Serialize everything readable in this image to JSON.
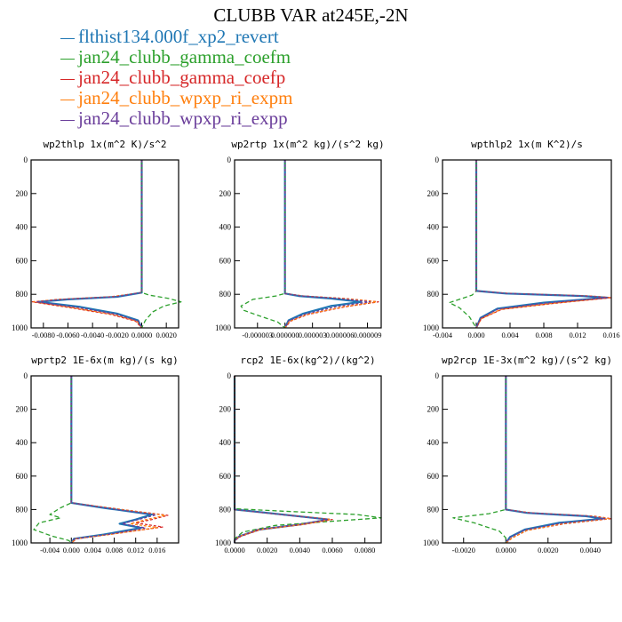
{
  "figure": {
    "title": "CLUBB VAR at245E,-2N",
    "legend": [
      {
        "label": "flthist134.000f_xp2_revert",
        "color": "#1f77b4"
      },
      {
        "label": "jan24_clubb_gamma_coefm",
        "color": "#2ca02c"
      },
      {
        "label": "jan24_clubb_gamma_coefp",
        "color": "#d62728"
      },
      {
        "label": "jan24_clubb_wpxp_ri_expm",
        "color": "#ff7f0e"
      },
      {
        "label": "jan24_clubb_wpxp_ri_expp",
        "color": "#6a3d9a"
      }
    ]
  },
  "chart_data": [
    {
      "type": "line",
      "title": "wp2thlp  1x(m^2 K)/s^2",
      "xlim": [
        -0.009,
        0.003
      ],
      "ylim": [
        1000,
        0
      ],
      "xticks": [
        -0.008,
        -0.006,
        -0.004,
        -0.002,
        0.0,
        0.002
      ],
      "xtick_labels": [
        "-0.0080",
        "-0.0060",
        "-0.0040",
        "-0.0020",
        "0.0000",
        "0.0020"
      ],
      "yticks": [
        0,
        200,
        400,
        600,
        800,
        1000
      ],
      "ytick_labels": [
        "0",
        "200",
        "400",
        "600",
        "800",
        "1000"
      ],
      "series": [
        {
          "name": "flthist134.000f_xp2_revert",
          "x": [
            0,
            0,
            0,
            -0.002,
            -0.006,
            -0.0084,
            -0.005,
            -0.002,
            -0.0003,
            0
          ],
          "y": [
            0,
            770,
            790,
            815,
            830,
            845,
            875,
            915,
            955,
            1000
          ]
        },
        {
          "name": "jan24_clubb_gamma_coefm",
          "x": [
            0,
            0,
            0,
            0.0006,
            0.0022,
            0.0032,
            0.0018,
            0.0009,
            0.0003,
            0
          ],
          "y": [
            0,
            770,
            790,
            805,
            825,
            845,
            870,
            905,
            955,
            1000
          ]
        },
        {
          "name": "jan24_clubb_gamma_coefp",
          "x": [
            0,
            0,
            0,
            -0.0025,
            -0.0068,
            -0.0089,
            -0.0058,
            -0.0025,
            -0.0005,
            0
          ],
          "y": [
            0,
            770,
            790,
            815,
            830,
            845,
            880,
            920,
            960,
            1000
          ]
        },
        {
          "name": "jan24_clubb_wpxp_ri_expm",
          "x": [
            0,
            0,
            0,
            -0.0024,
            -0.0066,
            -0.0088,
            -0.0056,
            -0.0023,
            -0.0004,
            0
          ],
          "y": [
            0,
            770,
            790,
            815,
            830,
            845,
            880,
            920,
            960,
            1000
          ]
        },
        {
          "name": "jan24_clubb_wpxp_ri_expp",
          "x": [
            0,
            0,
            0,
            -0.0021,
            -0.0062,
            -0.0086,
            -0.0052,
            -0.0021,
            -0.0003,
            0
          ],
          "y": [
            0,
            770,
            790,
            815,
            830,
            845,
            878,
            918,
            958,
            1000
          ]
        }
      ]
    },
    {
      "type": "line",
      "title": "wp2rtp  1x(m^2 kg)/(s^2 kg)",
      "xlim": [
        -5.5e-06,
        1.05e-05
      ],
      "ylim": [
        1000,
        0
      ],
      "xticks": [
        -3e-06,
        0.0,
        3e-06,
        6e-06,
        9e-06
      ],
      "xtick_labels": [
        "-0.000003",
        "0.000000",
        "0.000003",
        "0.000006",
        "0.000009"
      ],
      "yticks": [
        0,
        200,
        400,
        600,
        800,
        1000
      ],
      "ytick_labels": [
        "0",
        "200",
        "400",
        "600",
        "800",
        "1000"
      ],
      "series": [
        {
          "name": "flthist134.000f_xp2_revert",
          "x": [
            0,
            0,
            0,
            1.5e-06,
            5e-06,
            8.3e-06,
            5e-06,
            2e-06,
            4e-07,
            0
          ],
          "y": [
            0,
            780,
            795,
            810,
            825,
            845,
            870,
            915,
            955,
            1000
          ]
        },
        {
          "name": "jan24_clubb_gamma_coefm",
          "x": [
            0,
            0,
            0,
            -1e-06,
            -3.5e-06,
            -4.8e-06,
            -4.5e-06,
            -3e-06,
            -8e-07,
            0
          ],
          "y": [
            0,
            780,
            795,
            810,
            830,
            870,
            895,
            925,
            965,
            1000
          ]
        },
        {
          "name": "jan24_clubb_gamma_coefp",
          "x": [
            0,
            0,
            0,
            2e-06,
            6.5e-06,
            1.02e-05,
            6.5e-06,
            2.5e-06,
            6e-07,
            0
          ],
          "y": [
            0,
            780,
            795,
            810,
            825,
            845,
            875,
            920,
            960,
            1000
          ]
        },
        {
          "name": "jan24_clubb_wpxp_ri_expm",
          "x": [
            0,
            0,
            0,
            1.9e-06,
            6.3e-06,
            1e-05,
            6.3e-06,
            2.4e-06,
            5e-07,
            0
          ],
          "y": [
            0,
            780,
            795,
            810,
            825,
            845,
            875,
            920,
            960,
            1000
          ]
        },
        {
          "name": "jan24_clubb_wpxp_ri_expp",
          "x": [
            0,
            0,
            0,
            1.7e-06,
            5.7e-06,
            9.3e-06,
            5.7e-06,
            2.2e-06,
            4e-07,
            0
          ],
          "y": [
            0,
            780,
            795,
            810,
            825,
            845,
            872,
            918,
            958,
            1000
          ]
        }
      ]
    },
    {
      "type": "line",
      "title": "wpthlp2  1x(m K^2)/s",
      "xlim": [
        -0.004,
        0.016
      ],
      "ylim": [
        1000,
        0
      ],
      "xticks": [
        -0.004,
        0.0,
        0.004,
        0.008,
        0.012,
        0.016
      ],
      "xtick_labels": [
        "-0.004",
        "0.000",
        "0.004",
        "0.008",
        "0.012",
        "0.016"
      ],
      "yticks": [
        0,
        200,
        400,
        600,
        800,
        1000
      ],
      "ytick_labels": [
        "0",
        "200",
        "400",
        "600",
        "800",
        "1000"
      ],
      "series": [
        {
          "name": "flthist134.000f_xp2_revert",
          "x": [
            0,
            0,
            0,
            0.0035,
            0.0125,
            0.0155,
            0.008,
            0.0025,
            0.0005,
            0
          ],
          "y": [
            0,
            760,
            780,
            795,
            810,
            820,
            850,
            885,
            940,
            1000
          ]
        },
        {
          "name": "jan24_clubb_gamma_coefm",
          "x": [
            0,
            0,
            0,
            -0.0005,
            -0.002,
            -0.0032,
            -0.002,
            -0.0008,
            0
          ],
          "y": [
            0,
            760,
            780,
            805,
            830,
            850,
            880,
            935,
            1000
          ]
        },
        {
          "name": "jan24_clubb_gamma_coefp",
          "x": [
            0,
            0,
            0,
            0.004,
            0.0135,
            0.016,
            0.009,
            0.003,
            0.0006,
            0
          ],
          "y": [
            0,
            760,
            780,
            795,
            810,
            820,
            855,
            890,
            945,
            1000
          ]
        },
        {
          "name": "jan24_clubb_wpxp_ri_expm",
          "x": [
            0,
            0,
            0,
            0.0039,
            0.0132,
            0.0159,
            0.0088,
            0.0029,
            0.0006,
            0
          ],
          "y": [
            0,
            760,
            780,
            795,
            810,
            820,
            855,
            890,
            945,
            1000
          ]
        },
        {
          "name": "jan24_clubb_wpxp_ri_expp",
          "x": [
            0,
            0,
            0,
            0.0036,
            0.0127,
            0.0156,
            0.0082,
            0.0026,
            0.0005,
            0
          ],
          "y": [
            0,
            760,
            780,
            795,
            810,
            820,
            852,
            887,
            942,
            1000
          ]
        }
      ]
    },
    {
      "type": "line",
      "title": "wprtp2  1E-6x(m kg)/(s kg)",
      "xlim": [
        -0.0075,
        0.02
      ],
      "ylim": [
        1000,
        0
      ],
      "xticks": [
        -0.004,
        0.0,
        0.004,
        0.008,
        0.012,
        0.016
      ],
      "xtick_labels": [
        "-0.004",
        "0.000",
        "0.004",
        "0.008",
        "0.012",
        "0.016"
      ],
      "yticks": [
        0,
        200,
        400,
        600,
        800,
        1000
      ],
      "ytick_labels": [
        "0",
        "200",
        "400",
        "600",
        "800",
        "1000"
      ],
      "series": [
        {
          "name": "flthist134.000f_xp2_revert",
          "x": [
            0,
            0,
            0,
            0.006,
            0.015,
            0.012,
            0.009,
            0.013,
            0.006,
            0.0005,
            0
          ],
          "y": [
            0,
            740,
            760,
            790,
            830,
            860,
            885,
            910,
            950,
            975,
            1000
          ]
        },
        {
          "name": "jan24_clubb_gamma_coefm",
          "x": [
            0,
            0,
            0,
            -0.002,
            -0.004,
            -0.002,
            -0.006,
            -0.007,
            -0.0035,
            -0.0005,
            0
          ],
          "y": [
            0,
            740,
            760,
            790,
            830,
            850,
            880,
            920,
            960,
            985,
            1000
          ]
        },
        {
          "name": "jan24_clubb_gamma_coefp",
          "x": [
            0,
            0,
            0,
            0.007,
            0.018,
            0.015,
            0.012,
            0.017,
            0.008,
            0.001,
            0
          ],
          "y": [
            0,
            740,
            760,
            790,
            835,
            860,
            880,
            905,
            945,
            975,
            1000
          ]
        },
        {
          "name": "jan24_clubb_wpxp_ri_expm",
          "x": [
            0,
            0,
            0,
            0.0068,
            0.0175,
            0.014,
            0.011,
            0.016,
            0.0075,
            0.0008,
            0
          ],
          "y": [
            0,
            740,
            760,
            790,
            835,
            860,
            885,
            908,
            948,
            975,
            1000
          ]
        },
        {
          "name": "jan24_clubb_wpxp_ri_expp",
          "x": [
            0,
            0,
            0,
            0.0062,
            0.0158,
            0.0125,
            0.0095,
            0.0138,
            0.0066,
            0.0006,
            0
          ],
          "y": [
            0,
            740,
            760,
            790,
            832,
            860,
            885,
            910,
            950,
            975,
            1000
          ]
        }
      ]
    },
    {
      "type": "line",
      "title": "rcp2  1E-6x(kg^2)/(kg^2)",
      "xlim": [
        0.0,
        0.009
      ],
      "ylim": [
        1000,
        0
      ],
      "xticks": [
        0.0,
        0.002,
        0.004,
        0.006,
        0.008
      ],
      "xtick_labels": [
        "0.0000",
        "0.0020",
        "0.0040",
        "0.0060",
        "0.0080"
      ],
      "yticks": [
        0,
        200,
        400,
        600,
        800,
        1000
      ],
      "ytick_labels": [
        "0",
        "200",
        "400",
        "600",
        "800",
        "1000"
      ],
      "series": [
        {
          "name": "flthist134.000f_xp2_revert",
          "x": [
            0,
            0,
            0,
            0.002,
            0.0058,
            0.004,
            0.0015,
            0.0003,
            0,
            0
          ],
          "y": [
            0,
            780,
            800,
            820,
            860,
            890,
            920,
            960,
            985,
            1000
          ]
        },
        {
          "name": "jan24_clubb_gamma_coefm",
          "x": [
            0,
            0,
            0,
            0.003,
            0.0075,
            0.009,
            0.006,
            0.0025,
            0.0005,
            0,
            0
          ],
          "y": [
            0,
            780,
            795,
            810,
            830,
            850,
            870,
            895,
            935,
            975,
            1000
          ]
        },
        {
          "name": "jan24_clubb_gamma_coefp",
          "x": [
            0,
            0,
            0,
            0.002,
            0.006,
            0.0042,
            0.0016,
            0.0004,
            0,
            0
          ],
          "y": [
            0,
            780,
            800,
            822,
            860,
            890,
            920,
            960,
            985,
            1000
          ]
        },
        {
          "name": "jan24_clubb_wpxp_ri_expm",
          "x": [
            0,
            0,
            0,
            0.002,
            0.0059,
            0.0041,
            0.0015,
            0.0003,
            0,
            0
          ],
          "y": [
            0,
            780,
            800,
            822,
            860,
            890,
            920,
            960,
            985,
            1000
          ]
        },
        {
          "name": "jan24_clubb_wpxp_ri_expp",
          "x": [
            0,
            0,
            0,
            0.0019,
            0.0057,
            0.0039,
            0.0014,
            0.0003,
            0,
            0
          ],
          "y": [
            0,
            780,
            800,
            820,
            860,
            890,
            920,
            960,
            985,
            1000
          ]
        }
      ]
    },
    {
      "type": "line",
      "title": "wp2rcp  1E-3x(m^2 kg)/(s^2 kg)",
      "xlim": [
        -0.003,
        0.005
      ],
      "ylim": [
        1000,
        0
      ],
      "xticks": [
        -0.002,
        0.0,
        0.002,
        0.004
      ],
      "xtick_labels": [
        "-0.0020",
        "0.0000",
        "0.0020",
        "0.0040"
      ],
      "yticks": [
        0,
        200,
        400,
        600,
        800,
        1000
      ],
      "ytick_labels": [
        "0",
        "200",
        "400",
        "600",
        "800",
        "1000"
      ],
      "series": [
        {
          "name": "flthist134.000f_xp2_revert",
          "x": [
            0,
            0,
            0,
            0.001,
            0.0038,
            0.0046,
            0.0025,
            0.0009,
            0.0002,
            0
          ],
          "y": [
            0,
            780,
            800,
            820,
            840,
            855,
            880,
            920,
            965,
            1000
          ]
        },
        {
          "name": "jan24_clubb_gamma_coefm",
          "x": [
            0,
            0,
            0,
            -0.0008,
            -0.0025,
            -0.0015,
            -0.0003,
            0,
            0
          ],
          "y": [
            0,
            780,
            800,
            825,
            850,
            880,
            930,
            970,
            1000
          ]
        },
        {
          "name": "jan24_clubb_gamma_coefp",
          "x": [
            0,
            0,
            0,
            0.0012,
            0.0042,
            0.005,
            0.0028,
            0.001,
            0.0003,
            0
          ],
          "y": [
            0,
            780,
            800,
            820,
            840,
            855,
            885,
            925,
            970,
            1000
          ]
        },
        {
          "name": "jan24_clubb_wpxp_ri_expm",
          "x": [
            0,
            0,
            0,
            0.0011,
            0.0041,
            0.0049,
            0.0027,
            0.001,
            0.0003,
            0
          ],
          "y": [
            0,
            780,
            800,
            820,
            840,
            855,
            885,
            925,
            970,
            1000
          ]
        },
        {
          "name": "jan24_clubb_wpxp_ri_expp",
          "x": [
            0,
            0,
            0,
            0.001,
            0.0039,
            0.0047,
            0.0026,
            0.0009,
            0.0002,
            0
          ],
          "y": [
            0,
            780,
            800,
            820,
            840,
            855,
            882,
            922,
            967,
            1000
          ]
        }
      ]
    }
  ]
}
